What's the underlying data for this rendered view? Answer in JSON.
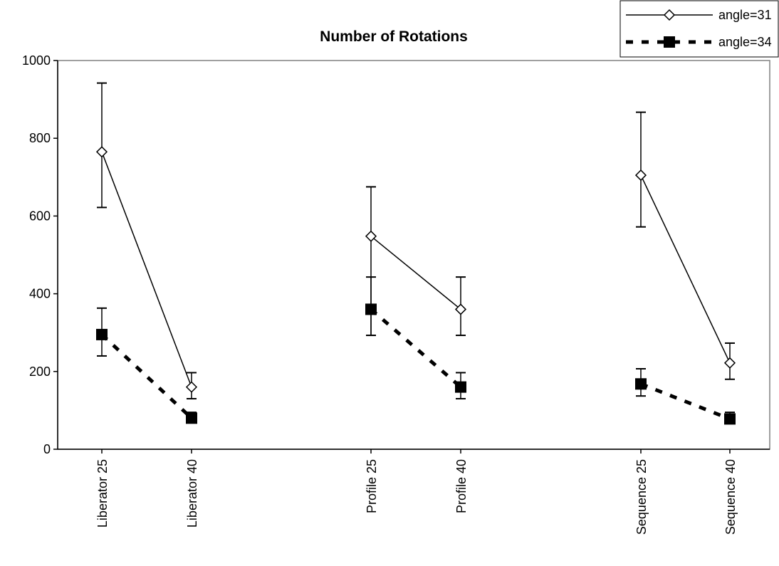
{
  "chart_data": {
    "type": "line",
    "title": "Number of Rotations",
    "xlabel": "",
    "ylabel": "",
    "ylim": [
      0,
      1000
    ],
    "yticks": [
      0,
      200,
      400,
      600,
      800,
      1000
    ],
    "categories": [
      "Liberator 25",
      "Liberator 40",
      "Profile 25",
      "Profile 40",
      "Sequence 25",
      "Sequence 40"
    ],
    "groups": [
      [
        0,
        1
      ],
      [
        2,
        3
      ],
      [
        4,
        5
      ]
    ],
    "grid": false,
    "legend_position": "top-right",
    "series": [
      {
        "name": "angle=31",
        "marker": "open-diamond",
        "line_style": "solid",
        "color": "#000000",
        "values": [
          765,
          160,
          548,
          360,
          705,
          222
        ],
        "err_low": [
          622,
          130,
          293,
          293,
          572,
          180
        ],
        "err_high": [
          942,
          197,
          675,
          443,
          867,
          273
        ]
      },
      {
        "name": "angle=34",
        "marker": "filled-square",
        "line_style": "dashed",
        "color": "#000000",
        "values": [
          295,
          80,
          360,
          160,
          168,
          78
        ],
        "err_low": [
          240,
          70,
          293,
          130,
          137,
          70
        ],
        "err_high": [
          363,
          95,
          443,
          197,
          207,
          95
        ]
      }
    ]
  }
}
